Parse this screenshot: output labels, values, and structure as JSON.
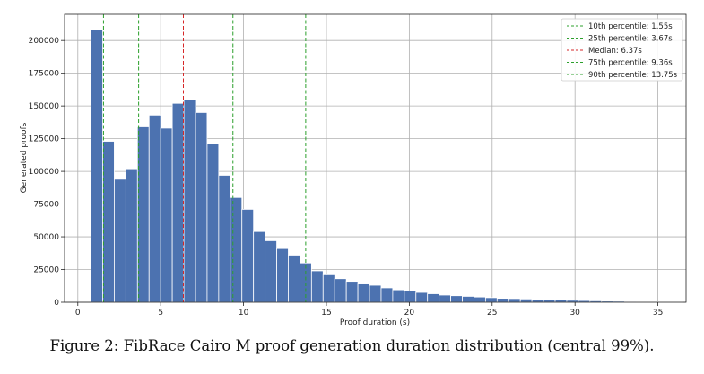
{
  "caption": "Figure 2: FibRace Cairo M proof generation duration distribution (central 99%).",
  "chart_data": {
    "type": "histogram",
    "xlabel": "Proof duration (s)",
    "ylabel": "Generated proofs",
    "xlim": [
      -0.8,
      36.7
    ],
    "ylim": [
      0,
      220000
    ],
    "xticks": [
      0,
      5,
      10,
      15,
      20,
      25,
      30,
      35
    ],
    "xtick_labels": [
      "0",
      "5",
      "10",
      "15",
      "20",
      "25",
      "30",
      "35"
    ],
    "yticks": [
      0,
      25000,
      50000,
      75000,
      100000,
      125000,
      150000,
      175000,
      200000
    ],
    "ytick_labels": [
      "0",
      "25000",
      "50000",
      "75000",
      "100000",
      "125000",
      "150000",
      "175000",
      "200000"
    ],
    "grid": true,
    "bin_start": 0.8,
    "bin_width": 0.7,
    "bar_color": "#4c72b0",
    "counts": [
      208000,
      123000,
      94000,
      102000,
      134000,
      143000,
      133000,
      152000,
      155000,
      145000,
      121000,
      97000,
      80000,
      71000,
      54000,
      47000,
      41000,
      36000,
      30000,
      24000,
      21000,
      18000,
      16000,
      14000,
      13000,
      11000,
      9500,
      8500,
      7500,
      6500,
      5500,
      5000,
      4500,
      4000,
      3500,
      3000,
      2800,
      2500,
      2200,
      2000,
      1800,
      1500,
      1300,
      1100,
      900,
      800,
      600,
      500,
      400,
      350,
      300
    ],
    "percentiles": [
      {
        "label": "10th percentile: 1.55s",
        "value": 1.55,
        "color": "#2ca02c"
      },
      {
        "label": "25th percentile: 3.67s",
        "value": 3.67,
        "color": "#2ca02c"
      },
      {
        "label": "Median: 6.37s",
        "value": 6.37,
        "color": "#d62728"
      },
      {
        "label": "75th percentile: 9.36s",
        "value": 9.36,
        "color": "#2ca02c"
      },
      {
        "label": "90th percentile: 13.75s",
        "value": 13.75,
        "color": "#2ca02c"
      }
    ],
    "legend_position": "top-right"
  }
}
